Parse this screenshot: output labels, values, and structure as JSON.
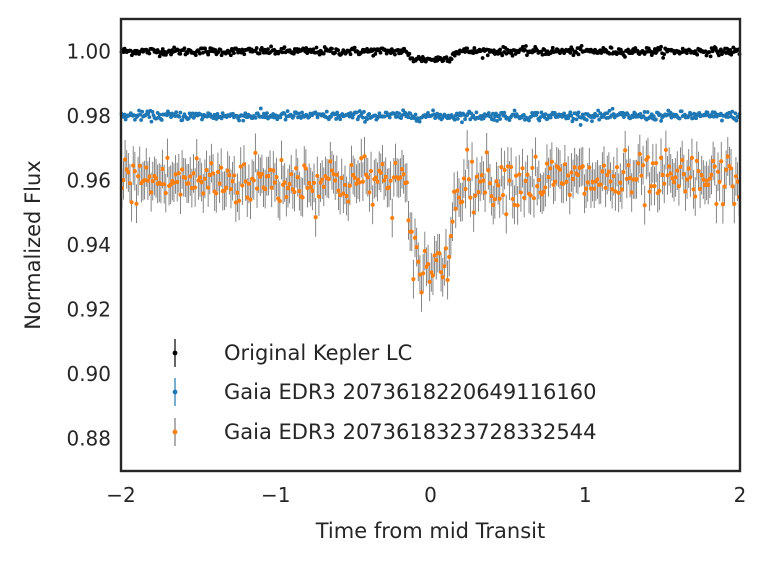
{
  "chart_data": {
    "type": "scatter",
    "xlabel": "Time from mid Transit",
    "ylabel": "Normalized Flux",
    "xlim": [
      -2,
      2
    ],
    "ylim": [
      0.87,
      1.01
    ],
    "xticks": [
      -2,
      -1,
      0,
      1,
      2
    ],
    "xtick_labels": [
      "−2",
      "−1",
      "0",
      "1",
      "2"
    ],
    "yticks": [
      0.88,
      0.9,
      0.92,
      0.94,
      0.96,
      0.98,
      1.0
    ],
    "ytick_labels": [
      "0.88",
      "0.90",
      "0.92",
      "0.94",
      "0.96",
      "0.98",
      "1.00"
    ],
    "grid": false,
    "legend_position": "lower-left",
    "series": [
      {
        "name": "Original Kepler LC",
        "color": "#000000",
        "baseline": 1.0,
        "transit_depth": 0.0025,
        "transit_half_width": 0.17,
        "scatter": 0.0006,
        "errorbar": 0.0005,
        "n_points": 600
      },
      {
        "name": "Gaia EDR3 2073618220649116160",
        "color": "#1f77b4",
        "baseline": 0.98,
        "transit_depth": 0.0,
        "transit_half_width": 0.0,
        "scatter": 0.0007,
        "errorbar": 0.0005,
        "n_points": 600
      },
      {
        "name": "Gaia EDR3 2073618323728332544",
        "color": "#ff7f0e",
        "baseline": 0.96,
        "transit_depth": 0.027,
        "transit_half_width": 0.17,
        "scatter": 0.004,
        "errorbar": 0.006,
        "n_points": 380
      }
    ]
  }
}
